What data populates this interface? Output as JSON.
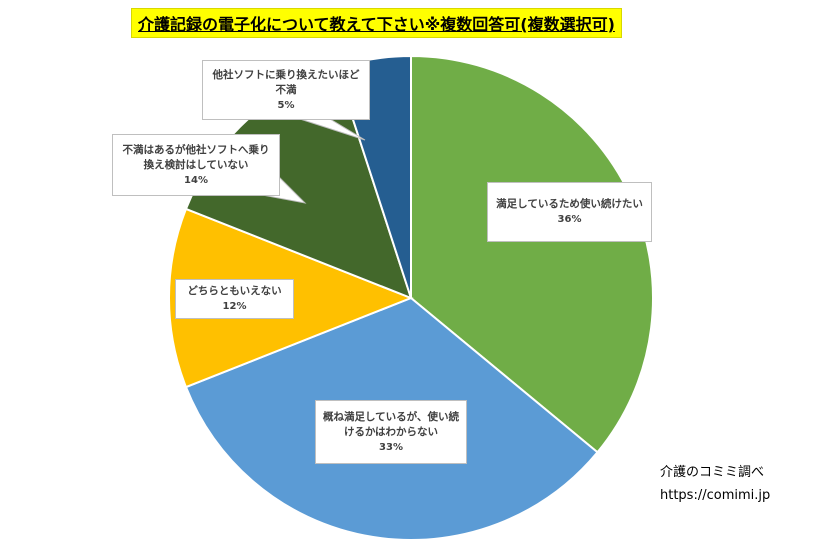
{
  "chart_data": {
    "type": "pie",
    "title": "介護記録の電子化について教えて下さい※複数回答可(複数選択可)",
    "slices": [
      {
        "label": "満足しているため使い続けたい",
        "value": 36,
        "value_label": "36%",
        "color": "#70ad47"
      },
      {
        "label": "概ね満足しているが、使い続けるかはわからない",
        "value": 33,
        "value_label": "33%",
        "color": "#5b9bd5"
      },
      {
        "label": "どちらともいえない",
        "value": 12,
        "value_label": "12%",
        "color": "#ffc000"
      },
      {
        "label": "不満はあるが他社ソフトへ乗り換え検討はしていない",
        "value": 14,
        "value_label": "14%",
        "color": "#43682b"
      },
      {
        "label": "他社ソフトに乗り換えたいほど不満",
        "value": 5,
        "value_label": "5%",
        "color": "#255e91"
      }
    ]
  },
  "credit": {
    "name": "介護のコミミ調べ",
    "url": "https://comimi.jp"
  }
}
